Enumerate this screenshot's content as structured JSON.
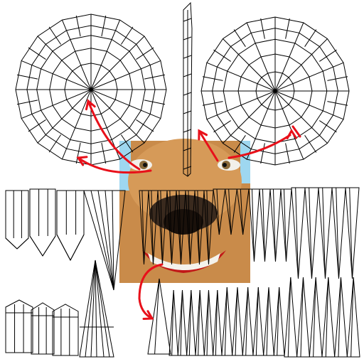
{
  "image": {
    "kind": "uv-wireframe-texture-layout",
    "background": "#ffffff",
    "wire_color": "#000000",
    "arrow_color": "#e8101a",
    "face_skin": "#c98b4a",
    "face_dark": "#2a1c12",
    "teeth_color": "#f4f2ec",
    "lip_color": "#c11818",
    "sky_color": "#9ed7f0",
    "eye_iris": "#8a6a3a",
    "ring_segments": 16,
    "arrow_count": 5
  }
}
